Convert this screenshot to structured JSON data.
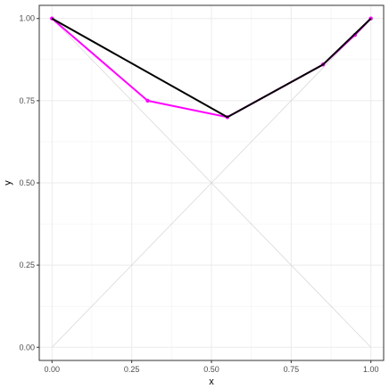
{
  "chart_data": {
    "type": "line",
    "xlabel": "x",
    "ylabel": "y",
    "xlim": [
      -0.04,
      1.04
    ],
    "ylim": [
      -0.04,
      1.04
    ],
    "x_ticks": [
      0.0,
      0.25,
      0.5,
      0.75,
      1.0
    ],
    "x_tick_labels": [
      "0.00",
      "0.25",
      "0.50",
      "0.75",
      "1.00"
    ],
    "y_ticks": [
      0.0,
      0.25,
      0.5,
      0.75,
      1.0
    ],
    "y_tick_labels": [
      "0.00",
      "0.25",
      "0.50",
      "0.75",
      "1.00"
    ],
    "grid": true,
    "legend": "none",
    "reference_lines": [
      {
        "x": [
          0,
          1
        ],
        "y": [
          0,
          1
        ],
        "color": "#d9d9d9"
      },
      {
        "x": [
          0,
          1
        ],
        "y": [
          1,
          0
        ],
        "color": "#d9d9d9"
      }
    ],
    "series": [
      {
        "color": "#ff00ff",
        "markers": true,
        "x": [
          0.0,
          0.3,
          0.55,
          0.85,
          0.95,
          1.0
        ],
        "y": [
          1.0,
          0.75,
          0.7,
          0.86,
          0.95,
          1.0
        ]
      },
      {
        "color": "#000000",
        "markers": false,
        "x": [
          0.0,
          0.55,
          0.85,
          1.0
        ],
        "y": [
          1.0,
          0.7,
          0.86,
          1.0
        ]
      }
    ]
  }
}
